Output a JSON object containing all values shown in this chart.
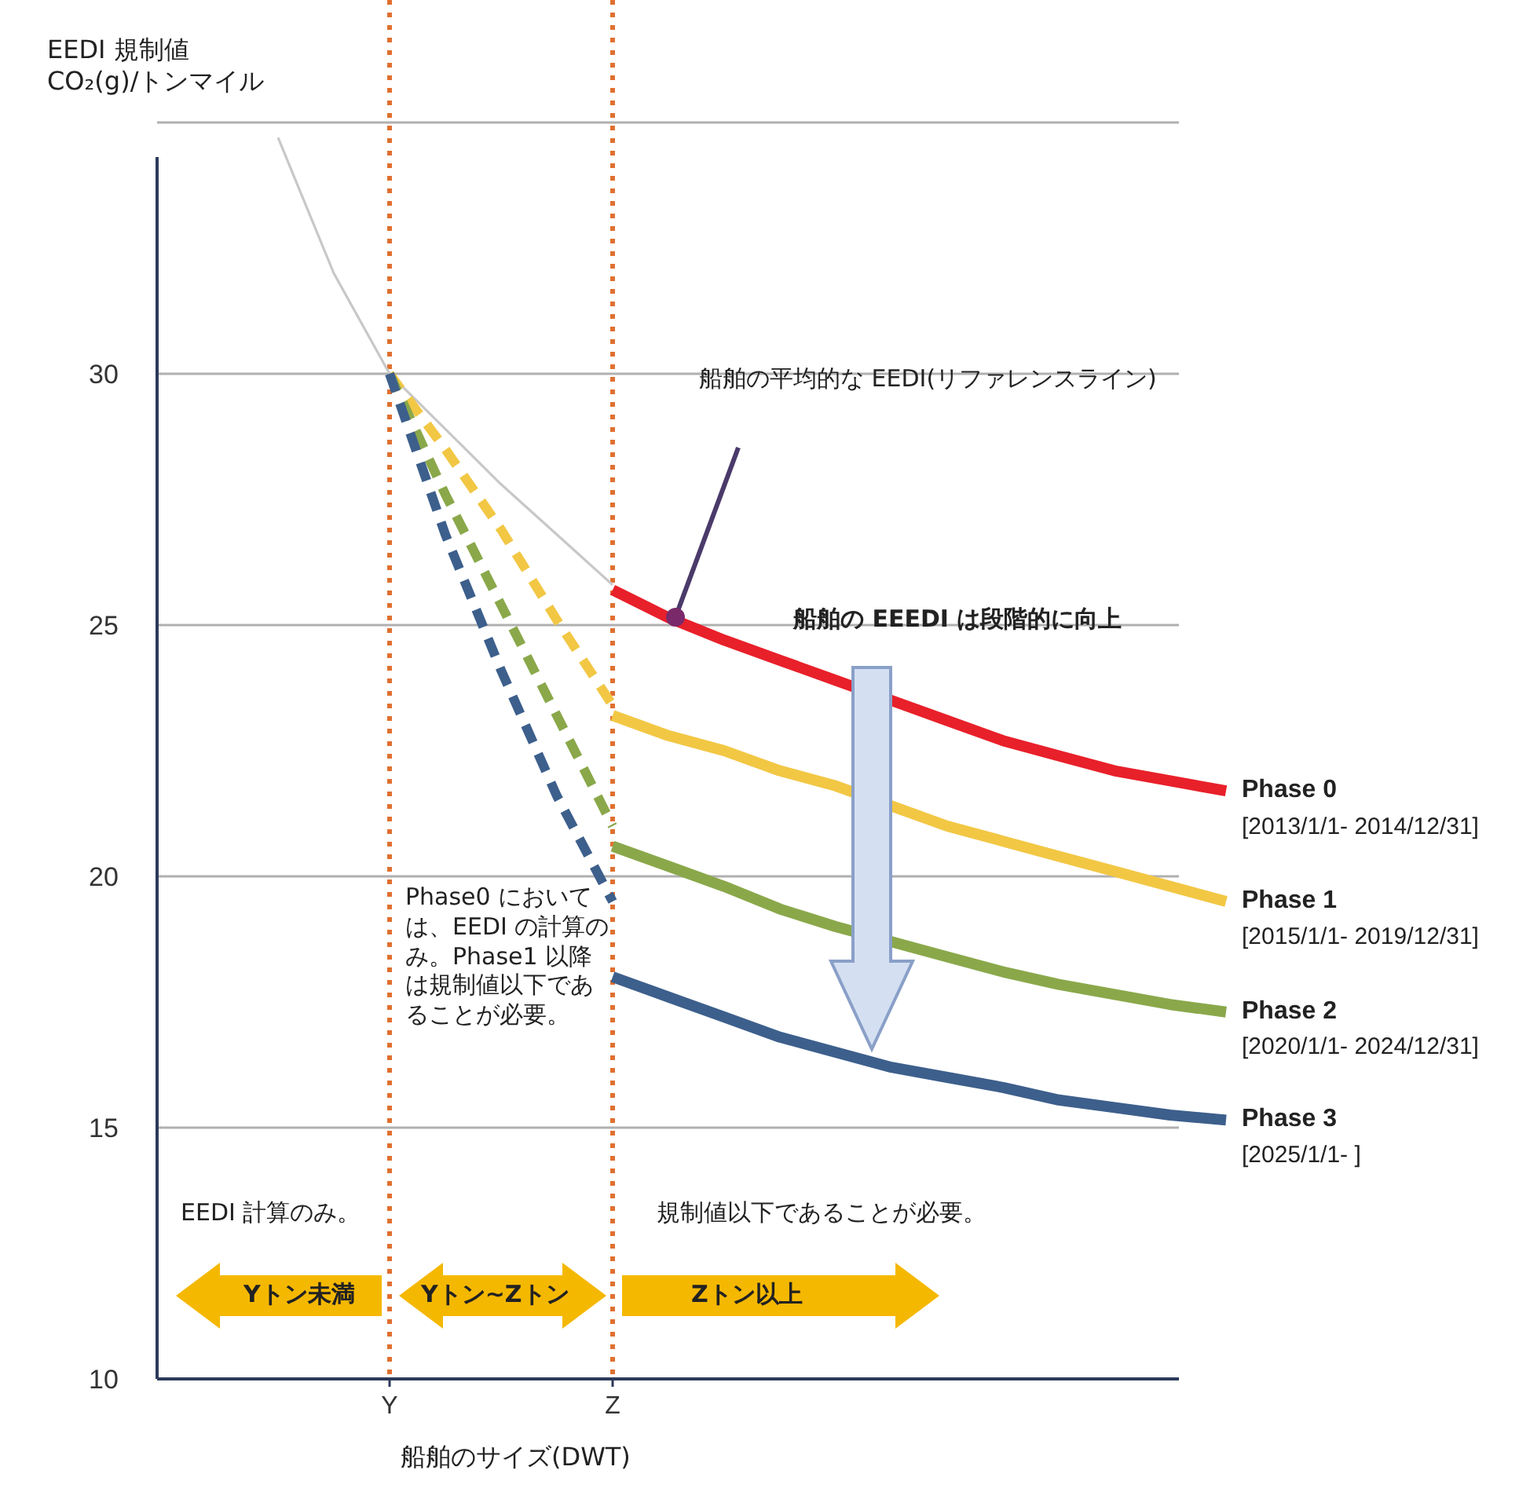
{
  "chart_data": {
    "type": "line",
    "xlabel": "船舶のサイズ(DWT)",
    "ylabel": "EEDI 規制値 CO₂(g)/トンマイル",
    "categories": [
      null,
      null,
      null,
      null,
      "Y",
      null,
      null,
      null,
      "Z",
      null,
      null,
      null,
      null,
      null,
      null,
      null,
      null,
      null,
      null,
      null
    ],
    "ylim": [
      10,
      35
    ],
    "yticks": [
      10,
      15,
      20,
      25,
      30,
      {
        "value": 35,
        "label": null
      }
    ],
    "grid": "y",
    "legend": false,
    "series": [
      {
        "color": "#c8c8c8",
        "values": [
          null,
          null,
          34.7,
          32.0,
          30,
          28.9,
          27.8,
          26.8,
          25.8,
          null,
          null,
          null,
          null,
          null,
          null,
          null,
          null,
          null,
          null,
          null
        ]
      },
      {
        "name": "Phase 0",
        "color": "#e8202a",
        "values": [
          null,
          null,
          null,
          null,
          null,
          null,
          null,
          null,
          25.7,
          25.15,
          24.7,
          24.3,
          23.9,
          23.5,
          23.1,
          22.7,
          22.4,
          22.1,
          21.9,
          21.7
        ]
      },
      {
        "color": "#f2c744",
        "line_style": "dashed",
        "values": [
          null,
          null,
          null,
          null,
          30,
          28.5,
          26.9,
          25.1,
          23.4,
          null,
          null,
          null,
          null,
          null,
          null,
          null,
          null,
          null,
          null,
          null
        ]
      },
      {
        "name": "Phase 1",
        "color": "#f2c744",
        "values": [
          null,
          null,
          null,
          null,
          null,
          null,
          null,
          null,
          23.2,
          22.8,
          22.5,
          22.1,
          21.8,
          21.4,
          21.0,
          20.7,
          20.4,
          20.1,
          19.8,
          19.5
        ]
      },
      {
        "color": "#8aa84a",
        "line_style": "dashed",
        "values": [
          null,
          null,
          null,
          null,
          30,
          27.6,
          25.4,
          23.2,
          21.0,
          null,
          null,
          null,
          null,
          null,
          null,
          null,
          null,
          null,
          null,
          null
        ]
      },
      {
        "name": "Phase 2",
        "color": "#8aa84a",
        "values": [
          null,
          null,
          null,
          null,
          null,
          null,
          null,
          null,
          20.6,
          20.2,
          19.8,
          19.35,
          19.0,
          18.7,
          18.4,
          18.1,
          17.85,
          17.65,
          17.45,
          17.3
        ]
      },
      {
        "color": "#3d5f8c",
        "line_style": "dashed",
        "values": [
          null,
          null,
          null,
          null,
          30,
          26.8,
          24.1,
          21.6,
          19.5,
          null,
          null,
          null,
          null,
          null,
          null,
          null,
          null,
          null,
          null,
          null
        ]
      },
      {
        "name": "Phase 3",
        "color": "#3d5f8c",
        "values": [
          null,
          null,
          null,
          null,
          null,
          null,
          null,
          null,
          18.0,
          17.6,
          17.2,
          16.8,
          16.5,
          16.2,
          16.0,
          15.8,
          15.55,
          15.4,
          15.25,
          15.15
        ]
      }
    ],
    "ref_lines": [
      {
        "axis": "x",
        "value": "Y",
        "color": "#e07030",
        "line_style": "dotted"
      },
      {
        "axis": "x",
        "value": "Z",
        "color": "#e07030",
        "line_style": "dotted"
      }
    ],
    "annotations": [
      "船舶の平均的な EEDI(リファレンスライン)",
      "船舶の EEEDI は段階的に向上",
      "Phase0 においては、EEDI の計算のみ。Phase1 以降は規制値以下であることが必要。",
      "EEDI 計算のみ。",
      "規制値以下であることが必要。",
      "Yトン未満",
      "Yトン~Zトン",
      "Zトン以上",
      "[2013/1/1- 2014/12/31]",
      "[2015/1/1- 2019/12/31]",
      "[2020/1/1- 2024/12/31]",
      "[2025/1/1- ]"
    ]
  }
}
